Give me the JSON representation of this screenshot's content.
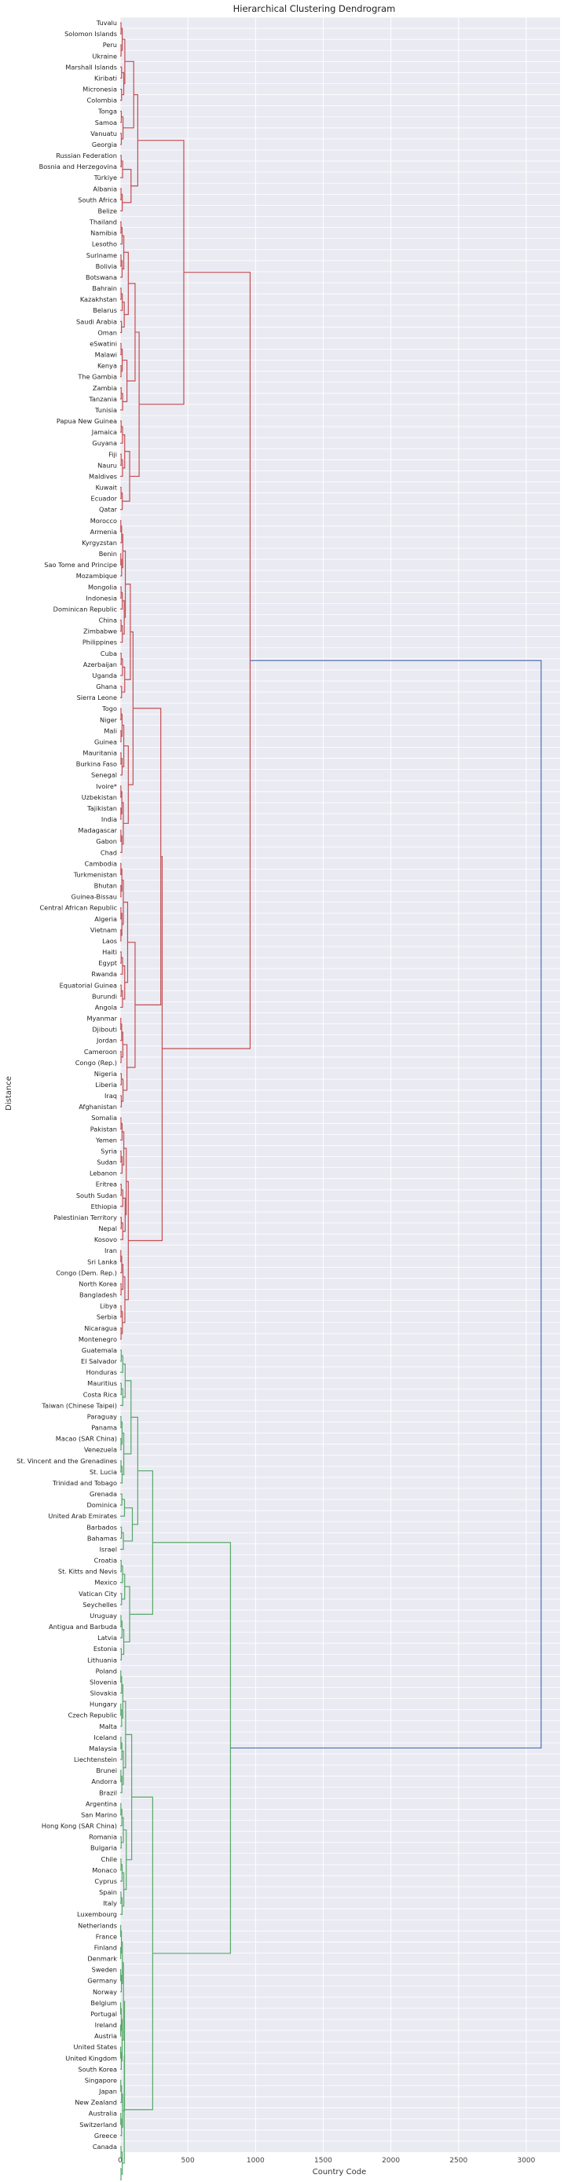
{
  "chart_data": {
    "type": "dendrogram",
    "orientation": "horizontal",
    "title": "Hierarchical Clustering Dendrogram",
    "xlabel": "Country Code",
    "ylabel": "Distance",
    "xlim": [
      0,
      3250
    ],
    "xticks": [
      0,
      500,
      1000,
      1500,
      2000,
      2500,
      3000
    ],
    "grid": true,
    "colors": {
      "cluster_a": "#c44e52",
      "cluster_b": "#55a868",
      "root": "#4c72b0",
      "background": "#eaeaf2",
      "grid": "#ffffff"
    },
    "leaves": [
      "Tuvalu",
      "Solomon Islands",
      "Peru",
      "Ukraine",
      "Marshall Islands",
      "Kiribati",
      "Micronesia",
      "Colombia",
      "Tonga",
      "Samoa",
      "Vanuatu",
      "Georgia",
      "Russian Federation",
      "Bosnia and Herzegovina",
      "Türkiye",
      "Albania",
      "South Africa",
      "Belize",
      "Thailand",
      "Namibia",
      "Lesotho",
      "Suriname",
      "Bolivia",
      "Botswana",
      "Bahrain",
      "Kazakhstan",
      "Belarus",
      "Saudi Arabia",
      "Oman",
      "eSwatini",
      "Malawi",
      "Kenya",
      "The Gambia",
      "Zambia",
      "Tanzania",
      "Tunisia",
      "Papua New Guinea",
      "Jamaica",
      "Guyana",
      "Fiji",
      "Nauru",
      "Maldives",
      "Kuwait",
      "Ecuador",
      "Qatar",
      "Morocco",
      "Armenia",
      "Kyrgyzstan",
      "Benin",
      "Sao Tome and Principe",
      "Mozambique",
      "Mongolia",
      "Indonesia",
      "Dominican Republic",
      "China",
      "Zimbabwe",
      "Philippines",
      "Cuba",
      "Azerbaijan",
      "Uganda",
      "Ghana",
      "Sierra Leone",
      "Togo",
      "Niger",
      "Mali",
      "Guinea",
      "Mauritania",
      "Burkina Faso",
      "Senegal",
      "Ivoire*",
      "Uzbekistan",
      "Tajikistan",
      "India",
      "Madagascar",
      "Gabon",
      "Chad",
      "Cambodia",
      "Turkmenistan",
      "Bhutan",
      "Guinea-Bissau",
      "Central African Republic",
      "Algeria",
      "Vietnam",
      "Laos",
      "Haiti",
      "Egypt",
      "Rwanda",
      "Equatorial Guinea",
      "Burundi",
      "Angola",
      "Myanmar",
      "Djibouti",
      "Jordan",
      "Cameroon",
      "Congo (Rep.)",
      "Nigeria",
      "Liberia",
      "Iraq",
      "Afghanistan",
      "Somalia",
      "Pakistan",
      "Yemen",
      "Syria",
      "Sudan",
      "Lebanon",
      "Eritrea",
      "South Sudan",
      "Ethiopia",
      "Palestinian Territory",
      "Nepal",
      "Kosovo",
      "Iran",
      "Sri Lanka",
      "Congo (Dem. Rep.)",
      "North Korea",
      "Bangladesh",
      "Libya",
      "Serbia",
      "Nicaragua",
      "Montenegro",
      "Guatemala",
      "El Salvador",
      "Honduras",
      "Mauritius",
      "Costa Rica",
      "Taiwan (Chinese Taipei)",
      "Paraguay",
      "Panama",
      "Macao (SAR China)",
      "Venezuela",
      "St. Vincent and the Grenadines",
      "St. Lucia",
      "Trinidad and Tobago",
      "Grenada",
      "Dominica",
      "United Arab Emirates",
      "Barbados",
      "Bahamas",
      "Israel",
      "Croatia",
      "St. Kitts and Nevis",
      "Mexico",
      "Vatican City",
      "Seychelles",
      "Uruguay",
      "Antigua and Barbuda",
      "Latvia",
      "Estonia",
      "Lithuania",
      "Poland",
      "Slovenia",
      "Slovakia",
      "Hungary",
      "Czech Republic",
      "Malta",
      "Iceland",
      "Malaysia",
      "Liechtenstein",
      "Brunei",
      "Andorra",
      "Brazil",
      "Argentina",
      "San Marino",
      "Hong Kong (SAR China)",
      "Romania",
      "Bulgaria",
      "Chile",
      "Monaco",
      "Cyprus",
      "Spain",
      "Italy",
      "Luxembourg",
      "Netherlands",
      "France",
      "Finland",
      "Denmark",
      "Sweden",
      "Germany",
      "Norway",
      "Belgium",
      "Portugal",
      "Ireland",
      "Austria",
      "United States",
      "United Kingdom",
      "South Korea",
      "Singapore",
      "Japan",
      "New Zealand",
      "Australia",
      "Switzerland",
      "Greece",
      "Canada"
    ],
    "clusters": [
      {
        "color": "cluster_a",
        "range": [
          0,
          11
        ],
        "subgroups": [
          [
            0,
            3
          ],
          [
            4,
            7
          ],
          [
            8,
            11
          ]
        ],
        "heights": [
          [
            20,
            40,
            30
          ],
          65,
          100
        ]
      },
      {
        "color": "cluster_a",
        "range": [
          12,
          17
        ],
        "subgroups": [
          [
            12,
            14
          ],
          [
            15,
            17
          ]
        ],
        "heights": [
          [
            25,
            20
          ],
          80
        ]
      },
      {
        "color": "cluster_a",
        "range": [
          18,
          28
        ],
        "subgroups": [
          [
            18,
            23
          ],
          [
            24,
            28
          ]
        ],
        "heights": [
          [
            30,
            35
          ],
          60
        ]
      },
      {
        "color": "cluster_a",
        "range": [
          29,
          35
        ],
        "subgroups": [
          [
            29,
            32
          ],
          [
            33,
            35
          ]
        ],
        "heights": [
          [
            20,
            25
          ],
          50
        ]
      },
      {
        "color": "cluster_a",
        "range": [
          36,
          44
        ],
        "subgroups": [
          [
            36,
            41
          ],
          [
            42,
            44
          ]
        ],
        "heights": [
          [
            40,
            20
          ],
          70
        ]
      },
      {
        "color": "cluster_a",
        "range": [
          45,
          61
        ],
        "subgroups": [
          [
            45,
            50
          ],
          [
            51,
            56
          ],
          [
            57,
            61
          ]
        ],
        "heights": [
          [
            20,
            35,
            40
          ],
          75
        ]
      },
      {
        "color": "cluster_a",
        "range": [
          62,
          75
        ],
        "subgroups": [
          [
            62,
            68
          ],
          [
            69,
            75
          ]
        ],
        "heights": [
          [
            30,
            25
          ],
          60
        ]
      },
      {
        "color": "cluster_a",
        "range": [
          76,
          89
        ],
        "subgroups": [
          [
            76,
            83
          ],
          [
            84,
            89
          ]
        ],
        "heights": [
          [
            25,
            40
          ],
          55
        ]
      },
      {
        "color": "cluster_a",
        "range": [
          90,
          98
        ],
        "subgroups": [
          [
            90,
            94
          ],
          [
            95,
            98
          ]
        ],
        "heights": [
          [
            20,
            30
          ],
          50
        ]
      },
      {
        "color": "cluster_a",
        "range": [
          99,
          119
        ],
        "subgroups": [
          [
            99,
            104
          ],
          [
            105,
            110
          ],
          [
            111,
            119
          ]
        ],
        "heights": [
          [
            30,
            45,
            35
          ],
          60
        ]
      },
      {
        "color": "cluster_b",
        "range": [
          120,
          132
        ],
        "subgroups": [
          [
            120,
            125
          ],
          [
            126,
            132
          ]
        ],
        "heights": [
          [
            45,
            30
          ],
          80
        ]
      },
      {
        "color": "cluster_b",
        "range": [
          133,
          138
        ],
        "subgroups": [
          [
            133,
            135
          ],
          [
            136,
            138
          ]
        ],
        "heights": [
          [
            50,
            35
          ],
          90
        ]
      },
      {
        "color": "cluster_b",
        "range": [
          139,
          148
        ],
        "subgroups": [
          [
            139,
            143
          ],
          [
            144,
            148
          ]
        ],
        "heights": [
          [
            40,
            30
          ],
          70
        ]
      },
      {
        "color": "cluster_b",
        "range": [
          149,
          160
        ],
        "subgroups": [
          [
            149,
            154
          ],
          [
            155,
            160
          ]
        ],
        "heights": [
          [
            20,
            25
          ],
          40
        ]
      },
      {
        "color": "cluster_b",
        "range": [
          161,
          171
        ],
        "subgroups": [
          [
            161,
            165
          ],
          [
            166,
            171
          ]
        ],
        "heights": [
          [
            25,
            30
          ],
          45
        ]
      },
      {
        "color": "cluster_b",
        "range": [
          172,
          195
        ],
        "subgroups": [
          [
            172,
            178
          ],
          [
            179,
            185
          ],
          [
            186,
            191
          ],
          [
            192,
            195
          ]
        ],
        "heights": [
          [
            15,
            12,
            18,
            20
          ],
          30
        ]
      }
    ],
    "merges": {
      "a": [
        [
          0,
          1,
          460
        ],
        [
          2,
          3,
          100
        ],
        [
          4,
          "a01",
          130
        ],
        [
          "a0",
          "a234",
          470
        ],
        [
          5,
          6,
          300
        ],
        [
          7,
          8,
          300
        ],
        [
          "a56",
          "a78",
          300
        ],
        [
          "a5678",
          9,
          310
        ],
        [
          "a0-4",
          "a5-9",
          960
        ]
      ],
      "b": [
        [
          10,
          11,
          110
        ],
        [
          "b1011",
          12,
          230
        ],
        [
          13,
          14,
          95
        ],
        [
          "b10-12",
          "b1314",
          240
        ],
        [
          15,
          "b1314x",
          200
        ],
        [
          "b-all",
          null,
          810
        ]
      ],
      "root": 3110
    }
  }
}
